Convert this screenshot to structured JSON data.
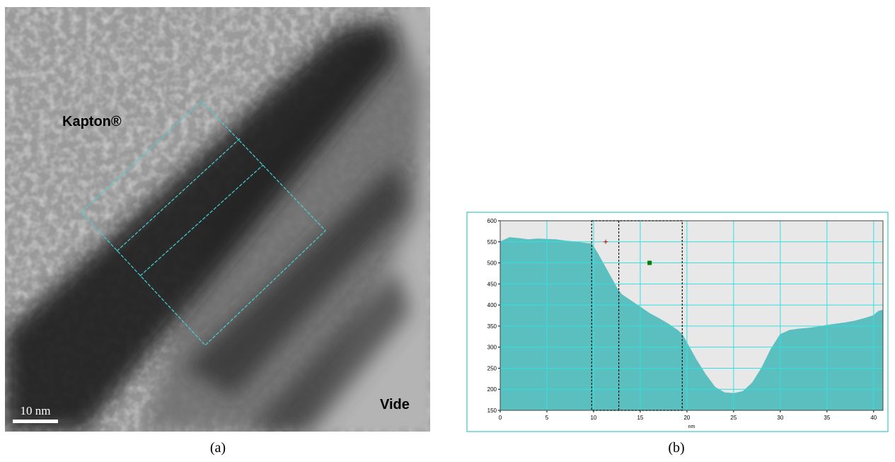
{
  "image": {
    "material_label": "Kapton®",
    "vacuum_label": "Vide",
    "scale_bar": "10 nm"
  },
  "captions": [
    "(a)",
    "(b)"
  ],
  "chart_data": {
    "type": "area",
    "x_label": "nm",
    "x": [
      0,
      1,
      2,
      3,
      4,
      5,
      6,
      7,
      8,
      9,
      9.8,
      10.5,
      11,
      12,
      12.5,
      13,
      14,
      15,
      16,
      17,
      18,
      19,
      19.5,
      20,
      21,
      22,
      23,
      24,
      25,
      26,
      27,
      28,
      29,
      30,
      31,
      32,
      33,
      34,
      35,
      36,
      37,
      38,
      39,
      40,
      40.5,
      41
    ],
    "values": [
      550,
      560,
      558,
      555,
      557,
      556,
      555,
      552,
      550,
      547,
      545,
      520,
      500,
      460,
      440,
      425,
      410,
      395,
      380,
      368,
      355,
      340,
      330,
      310,
      270,
      235,
      205,
      192,
      190,
      195,
      215,
      250,
      295,
      330,
      340,
      343,
      345,
      348,
      352,
      355,
      358,
      362,
      368,
      375,
      385,
      388
    ],
    "color": "#5bbfbf",
    "xlim": [
      0,
      41
    ],
    "xticks": [
      0,
      5,
      10,
      15,
      20,
      25,
      30,
      35,
      40
    ],
    "ylim": [
      150,
      600
    ],
    "yticks": [
      150,
      200,
      250,
      300,
      350,
      400,
      450,
      500,
      550,
      600
    ],
    "grid": true,
    "grid_color": "#35dede",
    "selection": [
      9.8,
      19.5
    ],
    "divider": 12.7,
    "markers": [
      {
        "x": 11.3,
        "y": 550,
        "color": "#c00000",
        "shape": "cross"
      },
      {
        "x": 16,
        "y": 500,
        "color": "#008000",
        "shape": "square"
      }
    ]
  }
}
